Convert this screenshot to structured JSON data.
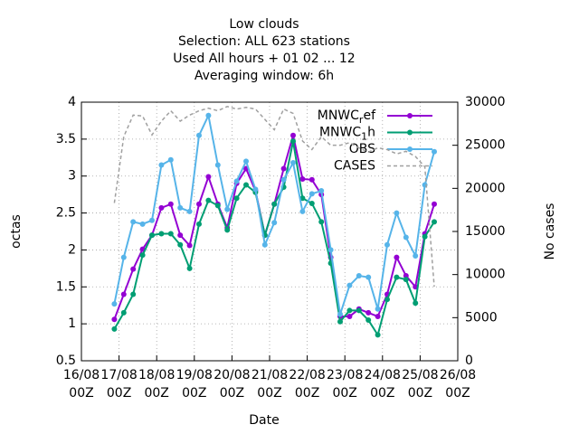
{
  "chart_data": {
    "type": "line",
    "title": "Low clouds",
    "subtitle": [
      "Selection: ALL    623 stations",
      "Used  All hours + 01 02 ... 12",
      "Averaging window:  6h"
    ],
    "x_label": "Date",
    "y_label": "octas",
    "y2_label": "No cases",
    "x": [
      0.875,
      1.125,
      1.375,
      1.625,
      1.875,
      2.125,
      2.375,
      2.625,
      2.875,
      3.125,
      3.375,
      3.625,
      3.875,
      4.125,
      4.375,
      4.625,
      4.875,
      5.125,
      5.375,
      5.625,
      5.875,
      6.125,
      6.375,
      6.625,
      6.875,
      7.125,
      7.375,
      7.625,
      7.875,
      8.125,
      8.375,
      8.625,
      8.875,
      9.125,
      9.375
    ],
    "xlim": [
      0,
      10
    ],
    "xticks": [
      {
        "value": 0,
        "label": "16/08 00Z"
      },
      {
        "value": 1,
        "label": "17/08 00Z"
      },
      {
        "value": 2,
        "label": "18/08 00Z"
      },
      {
        "value": 3,
        "label": "19/08 00Z"
      },
      {
        "value": 4,
        "label": "20/08 00Z"
      },
      {
        "value": 5,
        "label": "21/08 00Z"
      },
      {
        "value": 6,
        "label": "22/08 00Z"
      },
      {
        "value": 7,
        "label": "23/08 00Z"
      },
      {
        "value": 8,
        "label": "24/08 00Z"
      },
      {
        "value": 9,
        "label": "25/08 00Z"
      },
      {
        "value": 10,
        "label": "26/08 00Z"
      }
    ],
    "ylim": [
      0.5,
      4
    ],
    "yticks": [
      0.5,
      1,
      1.5,
      2,
      2.5,
      3,
      3.5,
      4
    ],
    "y2lim": [
      0,
      30000
    ],
    "y2ticks": [
      0,
      5000,
      10000,
      15000,
      20000,
      25000,
      30000
    ],
    "grid": true,
    "legend": "top-right",
    "series": [
      {
        "name": "MNWC_ref",
        "color": "#9400d3",
        "values": [
          1.06,
          1.4,
          1.74,
          2.01,
          2.2,
          2.57,
          2.62,
          2.2,
          2.06,
          2.62,
          2.99,
          2.62,
          2.3,
          2.9,
          3.1,
          2.8,
          2.2,
          2.62,
          3.1,
          3.55,
          2.96,
          2.95,
          2.75,
          1.9,
          1.1,
          1.1,
          1.2,
          1.15,
          1.1,
          1.4,
          1.9,
          1.65,
          1.5,
          2.22,
          2.62
        ]
      },
      {
        "name": "MNWC_1h",
        "color": "#009e73",
        "values": [
          0.93,
          1.15,
          1.4,
          1.93,
          2.2,
          2.22,
          2.22,
          2.07,
          1.75,
          2.35,
          2.67,
          2.6,
          2.27,
          2.7,
          2.88,
          2.78,
          2.2,
          2.62,
          2.85,
          3.47,
          2.7,
          2.63,
          2.38,
          1.82,
          1.03,
          1.18,
          1.18,
          1.05,
          0.85,
          1.33,
          1.63,
          1.6,
          1.28,
          2.18,
          2.38
        ]
      },
      {
        "name": "OBS",
        "color": "#56b4e9",
        "values": [
          1.27,
          1.9,
          2.38,
          2.35,
          2.4,
          3.15,
          3.22,
          2.57,
          2.52,
          3.55,
          3.82,
          3.15,
          2.55,
          2.93,
          3.2,
          2.82,
          2.07,
          2.37,
          2.95,
          3.18,
          2.52,
          2.76,
          2.8,
          2.0,
          1.13,
          1.52,
          1.65,
          1.63,
          1.2,
          2.07,
          2.5,
          2.17,
          1.92,
          2.88,
          3.33
        ]
      },
      {
        "name": "CASES",
        "color": "#a0a0a0",
        "axis": "y2",
        "dashed": true,
        "values": [
          18300,
          26000,
          28500,
          28400,
          26200,
          27800,
          29000,
          27800,
          28500,
          29000,
          29300,
          29000,
          29500,
          29200,
          29400,
          29200,
          28000,
          26800,
          29200,
          28700,
          25500,
          24500,
          26000,
          25000,
          25000,
          25300,
          24700,
          24200,
          24700,
          24500,
          24000,
          24300,
          23700,
          22500,
          8600
        ]
      }
    ]
  }
}
